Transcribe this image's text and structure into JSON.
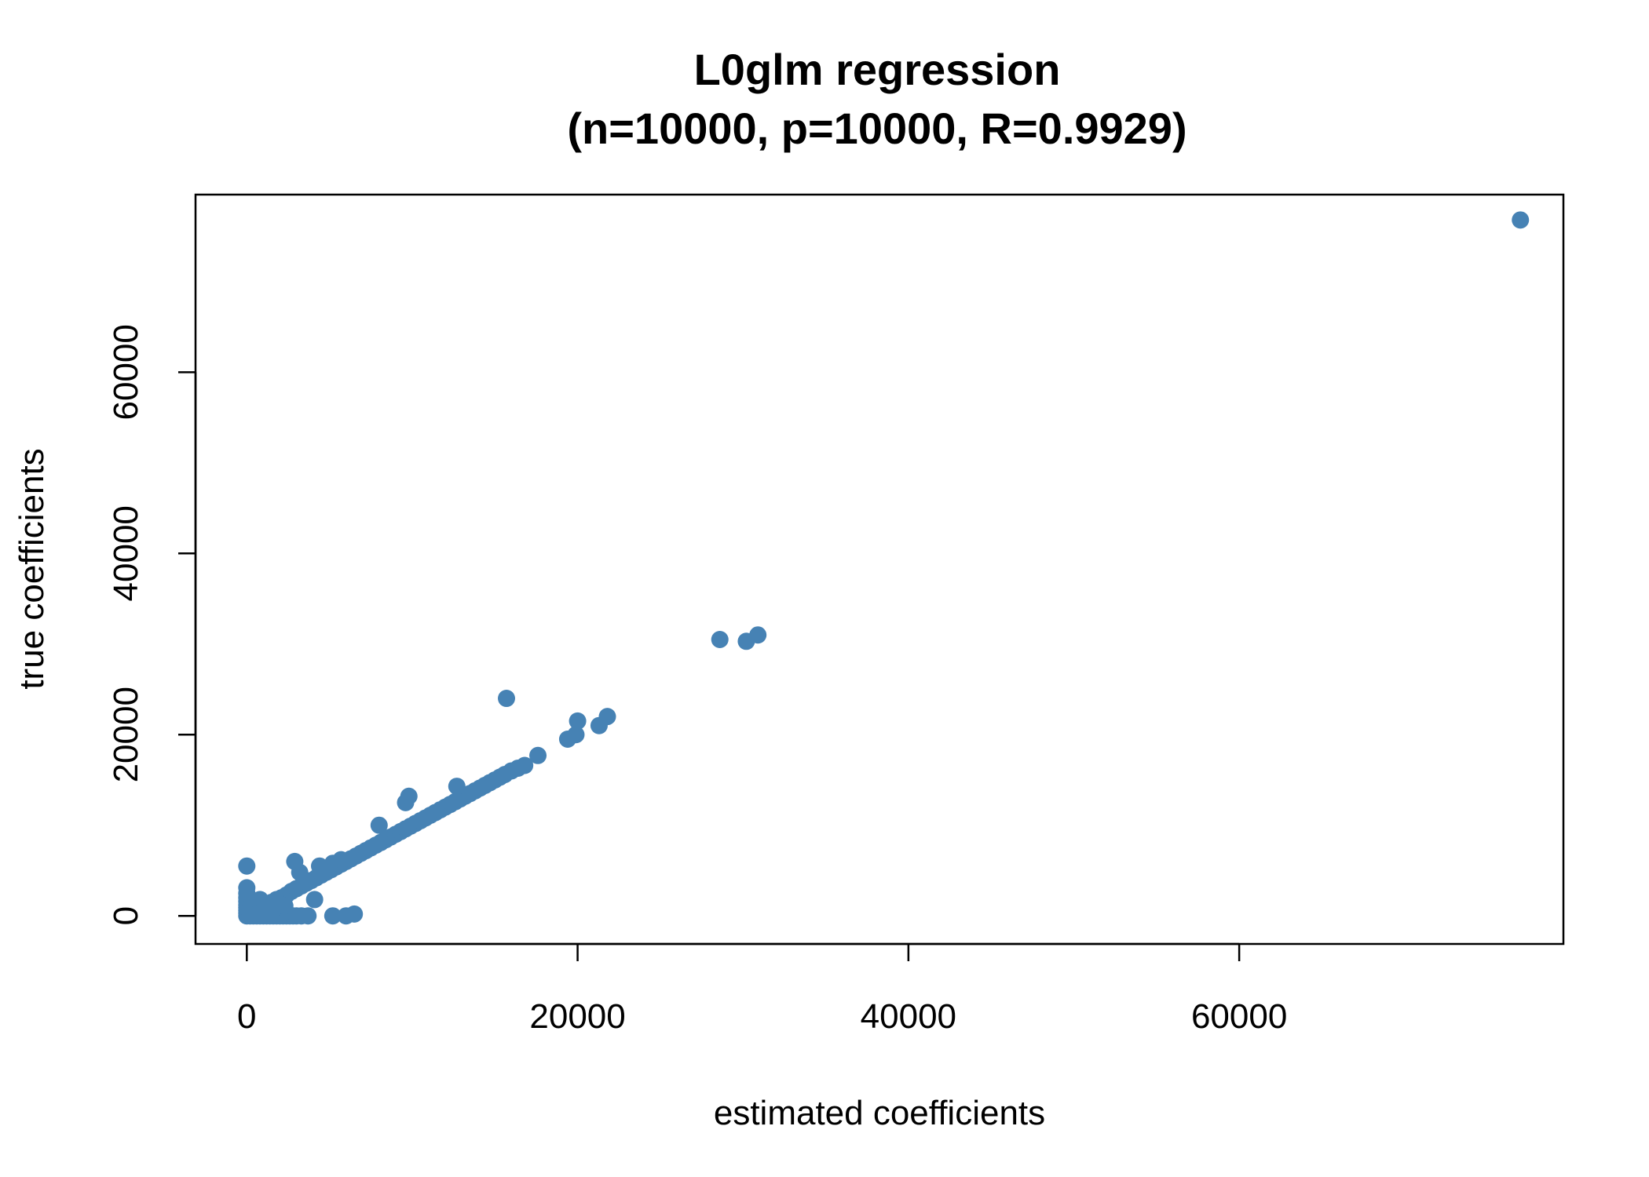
{
  "chart_data": {
    "type": "scatter",
    "title": "L0glm regression",
    "subtitle": "(n=10000, p=10000, R=0.9929)",
    "xlabel": "estimated coefficients",
    "ylabel": "true coefficients",
    "xlim": [
      -3100,
      79600
    ],
    "ylim": [
      -3100,
      79600
    ],
    "xticks": [
      0,
      20000,
      40000,
      60000
    ],
    "yticks": [
      0,
      20000,
      40000,
      60000
    ],
    "xtick_labels": [
      "0",
      "20000",
      "40000",
      "60000"
    ],
    "ytick_labels": [
      "0",
      "20000",
      "40000",
      "60000"
    ],
    "grid": false,
    "point_color": "#4682B4",
    "series": [
      {
        "points": [
          [
            0,
            0
          ],
          [
            0,
            300
          ],
          [
            0,
            600
          ],
          [
            0,
            900
          ],
          [
            0,
            1200
          ],
          [
            0,
            1600
          ],
          [
            0,
            2000
          ],
          [
            0,
            2500
          ],
          [
            0,
            3100
          ],
          [
            0,
            5500
          ],
          [
            200,
            0
          ],
          [
            400,
            0
          ],
          [
            600,
            0
          ],
          [
            800,
            0
          ],
          [
            1000,
            0
          ],
          [
            1200,
            0
          ],
          [
            1400,
            0
          ],
          [
            1600,
            0
          ],
          [
            1800,
            0
          ],
          [
            2000,
            0
          ],
          [
            2200,
            0
          ],
          [
            2400,
            0
          ],
          [
            2600,
            0
          ],
          [
            2800,
            0
          ],
          [
            3000,
            0
          ],
          [
            3300,
            0
          ],
          [
            3700,
            0
          ],
          [
            300,
            300
          ],
          [
            500,
            600
          ],
          [
            700,
            800
          ],
          [
            900,
            1100
          ],
          [
            1200,
            1300
          ],
          [
            1500,
            1500
          ],
          [
            1800,
            1800
          ],
          [
            2100,
            2000
          ],
          [
            2400,
            2300
          ],
          [
            500,
            1500
          ],
          [
            800,
            1800
          ],
          [
            1100,
            700
          ],
          [
            1400,
            1000
          ],
          [
            600,
            200
          ],
          [
            900,
            400
          ],
          [
            1300,
            500
          ],
          [
            1700,
            900
          ],
          [
            2000,
            1300
          ],
          [
            2300,
            1100
          ],
          [
            2700,
            2700
          ],
          [
            3000,
            3000
          ],
          [
            3300,
            3300
          ],
          [
            3600,
            3600
          ],
          [
            3900,
            3900
          ],
          [
            4200,
            4200
          ],
          [
            4500,
            4500
          ],
          [
            4800,
            4800
          ],
          [
            5100,
            5100
          ],
          [
            5400,
            5400
          ],
          [
            5700,
            5700
          ],
          [
            6000,
            6000
          ],
          [
            6300,
            6300
          ],
          [
            6600,
            6600
          ],
          [
            6900,
            6900
          ],
          [
            7200,
            7200
          ],
          [
            7500,
            7500
          ],
          [
            7800,
            7800
          ],
          [
            8100,
            8100
          ],
          [
            8400,
            8400
          ],
          [
            8700,
            8700
          ],
          [
            9000,
            9000
          ],
          [
            9300,
            9300
          ],
          [
            9600,
            9600
          ],
          [
            9900,
            9900
          ],
          [
            10200,
            10200
          ],
          [
            10500,
            10500
          ],
          [
            10800,
            10800
          ],
          [
            11100,
            11100
          ],
          [
            11400,
            11400
          ],
          [
            11700,
            11700
          ],
          [
            12000,
            12000
          ],
          [
            12300,
            12300
          ],
          [
            12600,
            12600
          ],
          [
            12900,
            12900
          ],
          [
            13200,
            13200
          ],
          [
            13500,
            13500
          ],
          [
            13800,
            13800
          ],
          [
            14100,
            14100
          ],
          [
            14400,
            14400
          ],
          [
            14700,
            14700
          ],
          [
            15000,
            15000
          ],
          [
            15300,
            15300
          ],
          [
            15600,
            15600
          ],
          [
            16000,
            16000
          ],
          [
            16400,
            16300
          ],
          [
            16800,
            16600
          ],
          [
            17600,
            17700
          ],
          [
            2900,
            6000
          ],
          [
            3200,
            4800
          ],
          [
            3600,
            3800
          ],
          [
            4100,
            1800
          ],
          [
            4400,
            5500
          ],
          [
            5200,
            5800
          ],
          [
            5700,
            6200
          ],
          [
            8000,
            10000
          ],
          [
            9600,
            12500
          ],
          [
            9800,
            13200
          ],
          [
            12700,
            14300
          ],
          [
            15700,
            24000
          ],
          [
            19400,
            19500
          ],
          [
            19900,
            20000
          ],
          [
            20000,
            21500
          ],
          [
            21300,
            21000
          ],
          [
            21800,
            22000
          ],
          [
            28600,
            30500
          ],
          [
            30200,
            30300
          ],
          [
            30900,
            31000
          ],
          [
            5200,
            0
          ],
          [
            6000,
            0
          ],
          [
            6500,
            200
          ],
          [
            77000,
            76800
          ]
        ]
      }
    ]
  }
}
